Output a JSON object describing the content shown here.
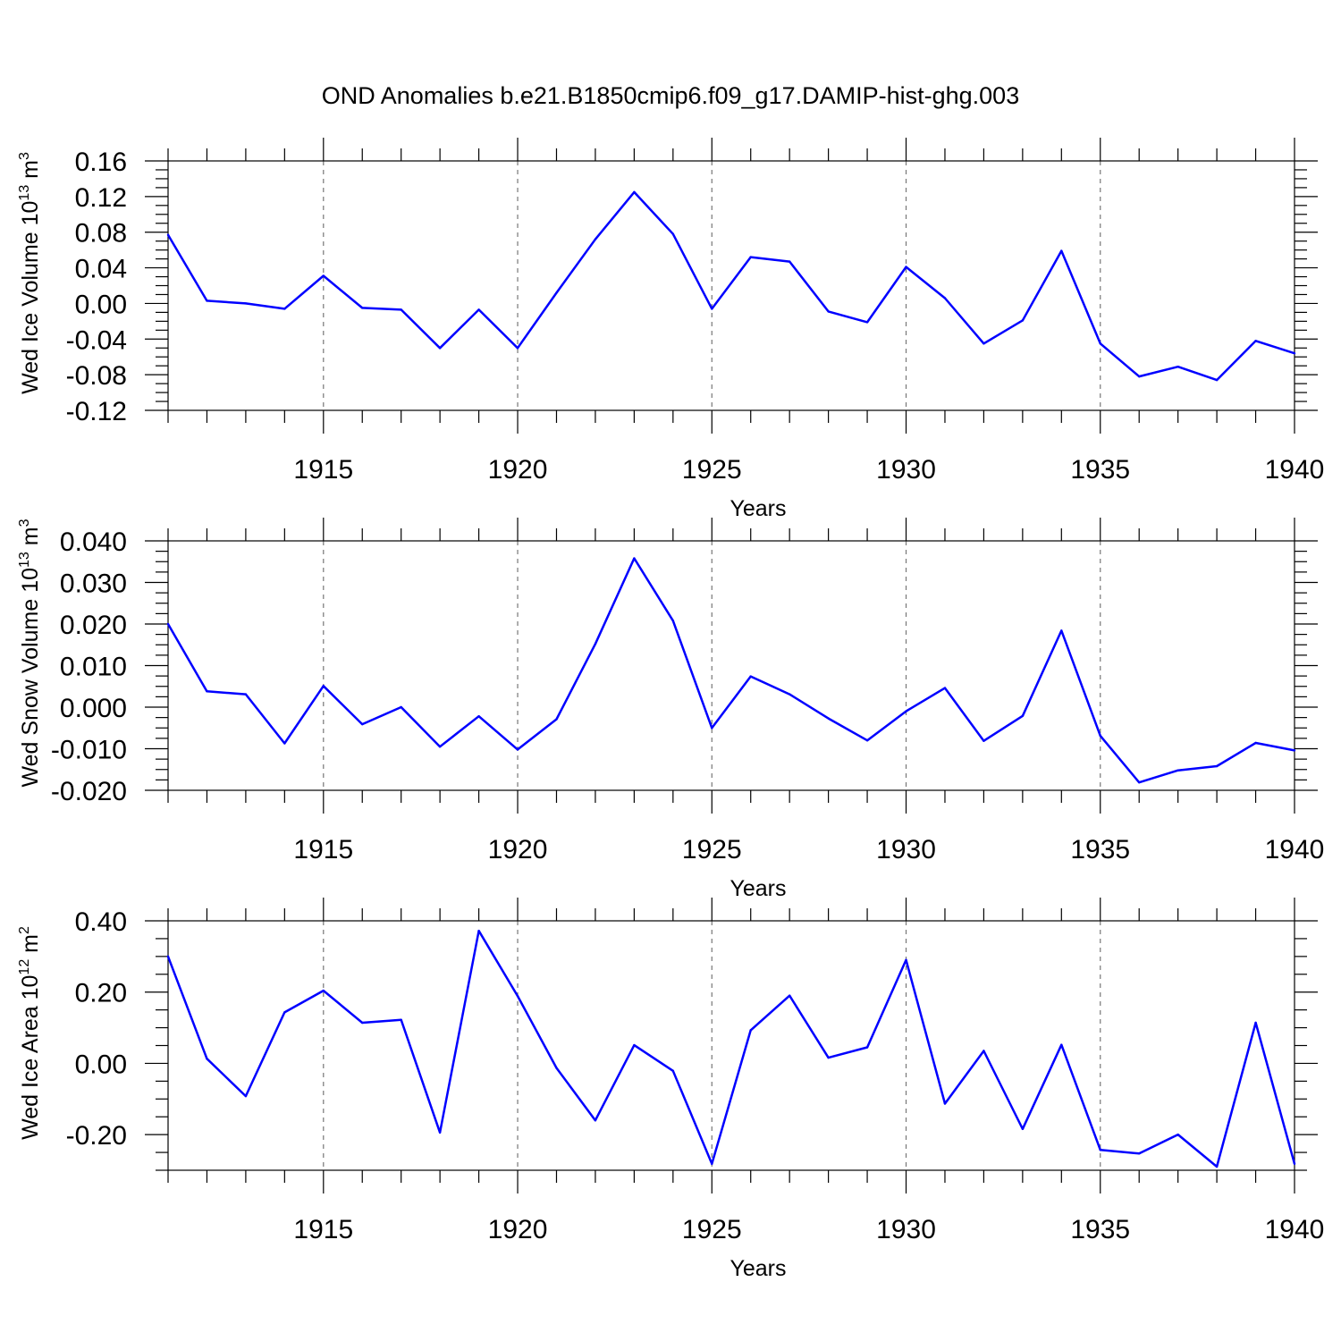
{
  "title": "OND Anomalies b.e21.B1850cmip6.f09_g17.DAMIP-hist-ghg.003",
  "colors": {
    "line": "#0000ff",
    "grid": "#777777",
    "axis": "#000000"
  },
  "chart_data": [
    {
      "type": "line",
      "ylabel": "Wed Ice Volume 10",
      "ylabel_exp": "13",
      "ylabel_unit": " m",
      "ylabel_unit_exp": "3",
      "xlabel": "Years",
      "xlim": [
        1911,
        1940
      ],
      "ylim": [
        -0.12,
        0.16
      ],
      "yticks": [
        -0.12,
        -0.08,
        -0.04,
        0.0,
        0.04,
        0.08,
        0.12,
        0.16
      ],
      "ytick_labels": [
        "-0.12",
        "-0.08",
        "-0.04",
        "0.00",
        "0.04",
        "0.08",
        "0.12",
        "0.16"
      ],
      "xticks": [
        1915,
        1920,
        1925,
        1930,
        1935,
        1940
      ],
      "xtick_labels": [
        "1915",
        "1920",
        "1925",
        "1930",
        "1935",
        "1940"
      ],
      "grid": "x",
      "x": [
        1911,
        1912,
        1913,
        1914,
        1915,
        1916,
        1917,
        1918,
        1919,
        1920,
        1921,
        1922,
        1923,
        1924,
        1925,
        1926,
        1927,
        1928,
        1929,
        1930,
        1931,
        1932,
        1933,
        1934,
        1935,
        1936,
        1937,
        1938,
        1939,
        1940
      ],
      "values": [
        0.077,
        0.003,
        0.0,
        -0.006,
        0.031,
        -0.005,
        -0.007,
        -0.05,
        -0.007,
        -0.05,
        0.012,
        0.072,
        0.125,
        0.078,
        -0.006,
        0.052,
        0.047,
        -0.009,
        -0.021,
        0.041,
        0.006,
        -0.045,
        -0.019,
        0.059,
        -0.045,
        -0.082,
        -0.071,
        -0.086,
        -0.042,
        -0.056
      ]
    },
    {
      "type": "line",
      "ylabel": "Wed Snow Volume 10",
      "ylabel_exp": "13",
      "ylabel_unit": " m",
      "ylabel_unit_exp": "3",
      "xlabel": "Years",
      "xlim": [
        1911,
        1940
      ],
      "ylim": [
        -0.02,
        0.04
      ],
      "yticks": [
        -0.02,
        -0.01,
        0.0,
        0.01,
        0.02,
        0.03,
        0.04
      ],
      "ytick_labels": [
        "-0.020",
        "-0.010",
        "0.000",
        "0.010",
        "0.020",
        "0.030",
        "0.040"
      ],
      "xticks": [
        1915,
        1920,
        1925,
        1930,
        1935,
        1940
      ],
      "xtick_labels": [
        "1915",
        "1920",
        "1925",
        "1930",
        "1935",
        "1940"
      ],
      "grid": "x",
      "x": [
        1911,
        1912,
        1913,
        1914,
        1915,
        1916,
        1917,
        1918,
        1919,
        1920,
        1921,
        1922,
        1923,
        1924,
        1925,
        1926,
        1927,
        1928,
        1929,
        1930,
        1931,
        1932,
        1933,
        1934,
        1935,
        1936,
        1937,
        1938,
        1939,
        1940
      ],
      "values": [
        0.02,
        0.0038,
        0.0031,
        -0.0087,
        0.0051,
        -0.0041,
        0.0,
        -0.0095,
        -0.0022,
        -0.0102,
        -0.0029,
        0.0152,
        0.0358,
        0.0208,
        -0.005,
        0.0074,
        0.0031,
        -0.0027,
        -0.008,
        -0.001,
        0.0046,
        -0.0081,
        -0.0021,
        0.0184,
        -0.0069,
        -0.0181,
        -0.0152,
        -0.0142,
        -0.0086,
        -0.0104
      ]
    },
    {
      "type": "line",
      "ylabel": "Wed Ice Area 10",
      "ylabel_exp": "12",
      "ylabel_unit": " m",
      "ylabel_unit_exp": "2",
      "xlabel": "Years",
      "xlim": [
        1911,
        1940
      ],
      "ylim": [
        -0.3,
        0.4
      ],
      "yticks": [
        -0.2,
        0.0,
        0.2,
        0.4
      ],
      "ytick_labels": [
        "-0.20",
        "0.00",
        "0.20",
        "0.40"
      ],
      "xticks": [
        1915,
        1920,
        1925,
        1930,
        1935,
        1940
      ],
      "xtick_labels": [
        "1915",
        "1920",
        "1925",
        "1930",
        "1935",
        "1940"
      ],
      "grid": "x",
      "x": [
        1911,
        1912,
        1913,
        1914,
        1915,
        1916,
        1917,
        1918,
        1919,
        1920,
        1921,
        1922,
        1923,
        1924,
        1925,
        1926,
        1927,
        1928,
        1929,
        1930,
        1931,
        1932,
        1933,
        1934,
        1935,
        1936,
        1937,
        1938,
        1939,
        1940
      ],
      "values": [
        0.3,
        0.013,
        -0.092,
        0.143,
        0.204,
        0.114,
        0.122,
        -0.194,
        0.372,
        0.189,
        -0.013,
        -0.16,
        0.051,
        -0.021,
        -0.282,
        0.093,
        0.19,
        0.016,
        0.045,
        0.29,
        -0.113,
        0.035,
        -0.184,
        0.052,
        -0.243,
        -0.253,
        -0.2,
        -0.29,
        0.114,
        -0.282
      ]
    }
  ]
}
